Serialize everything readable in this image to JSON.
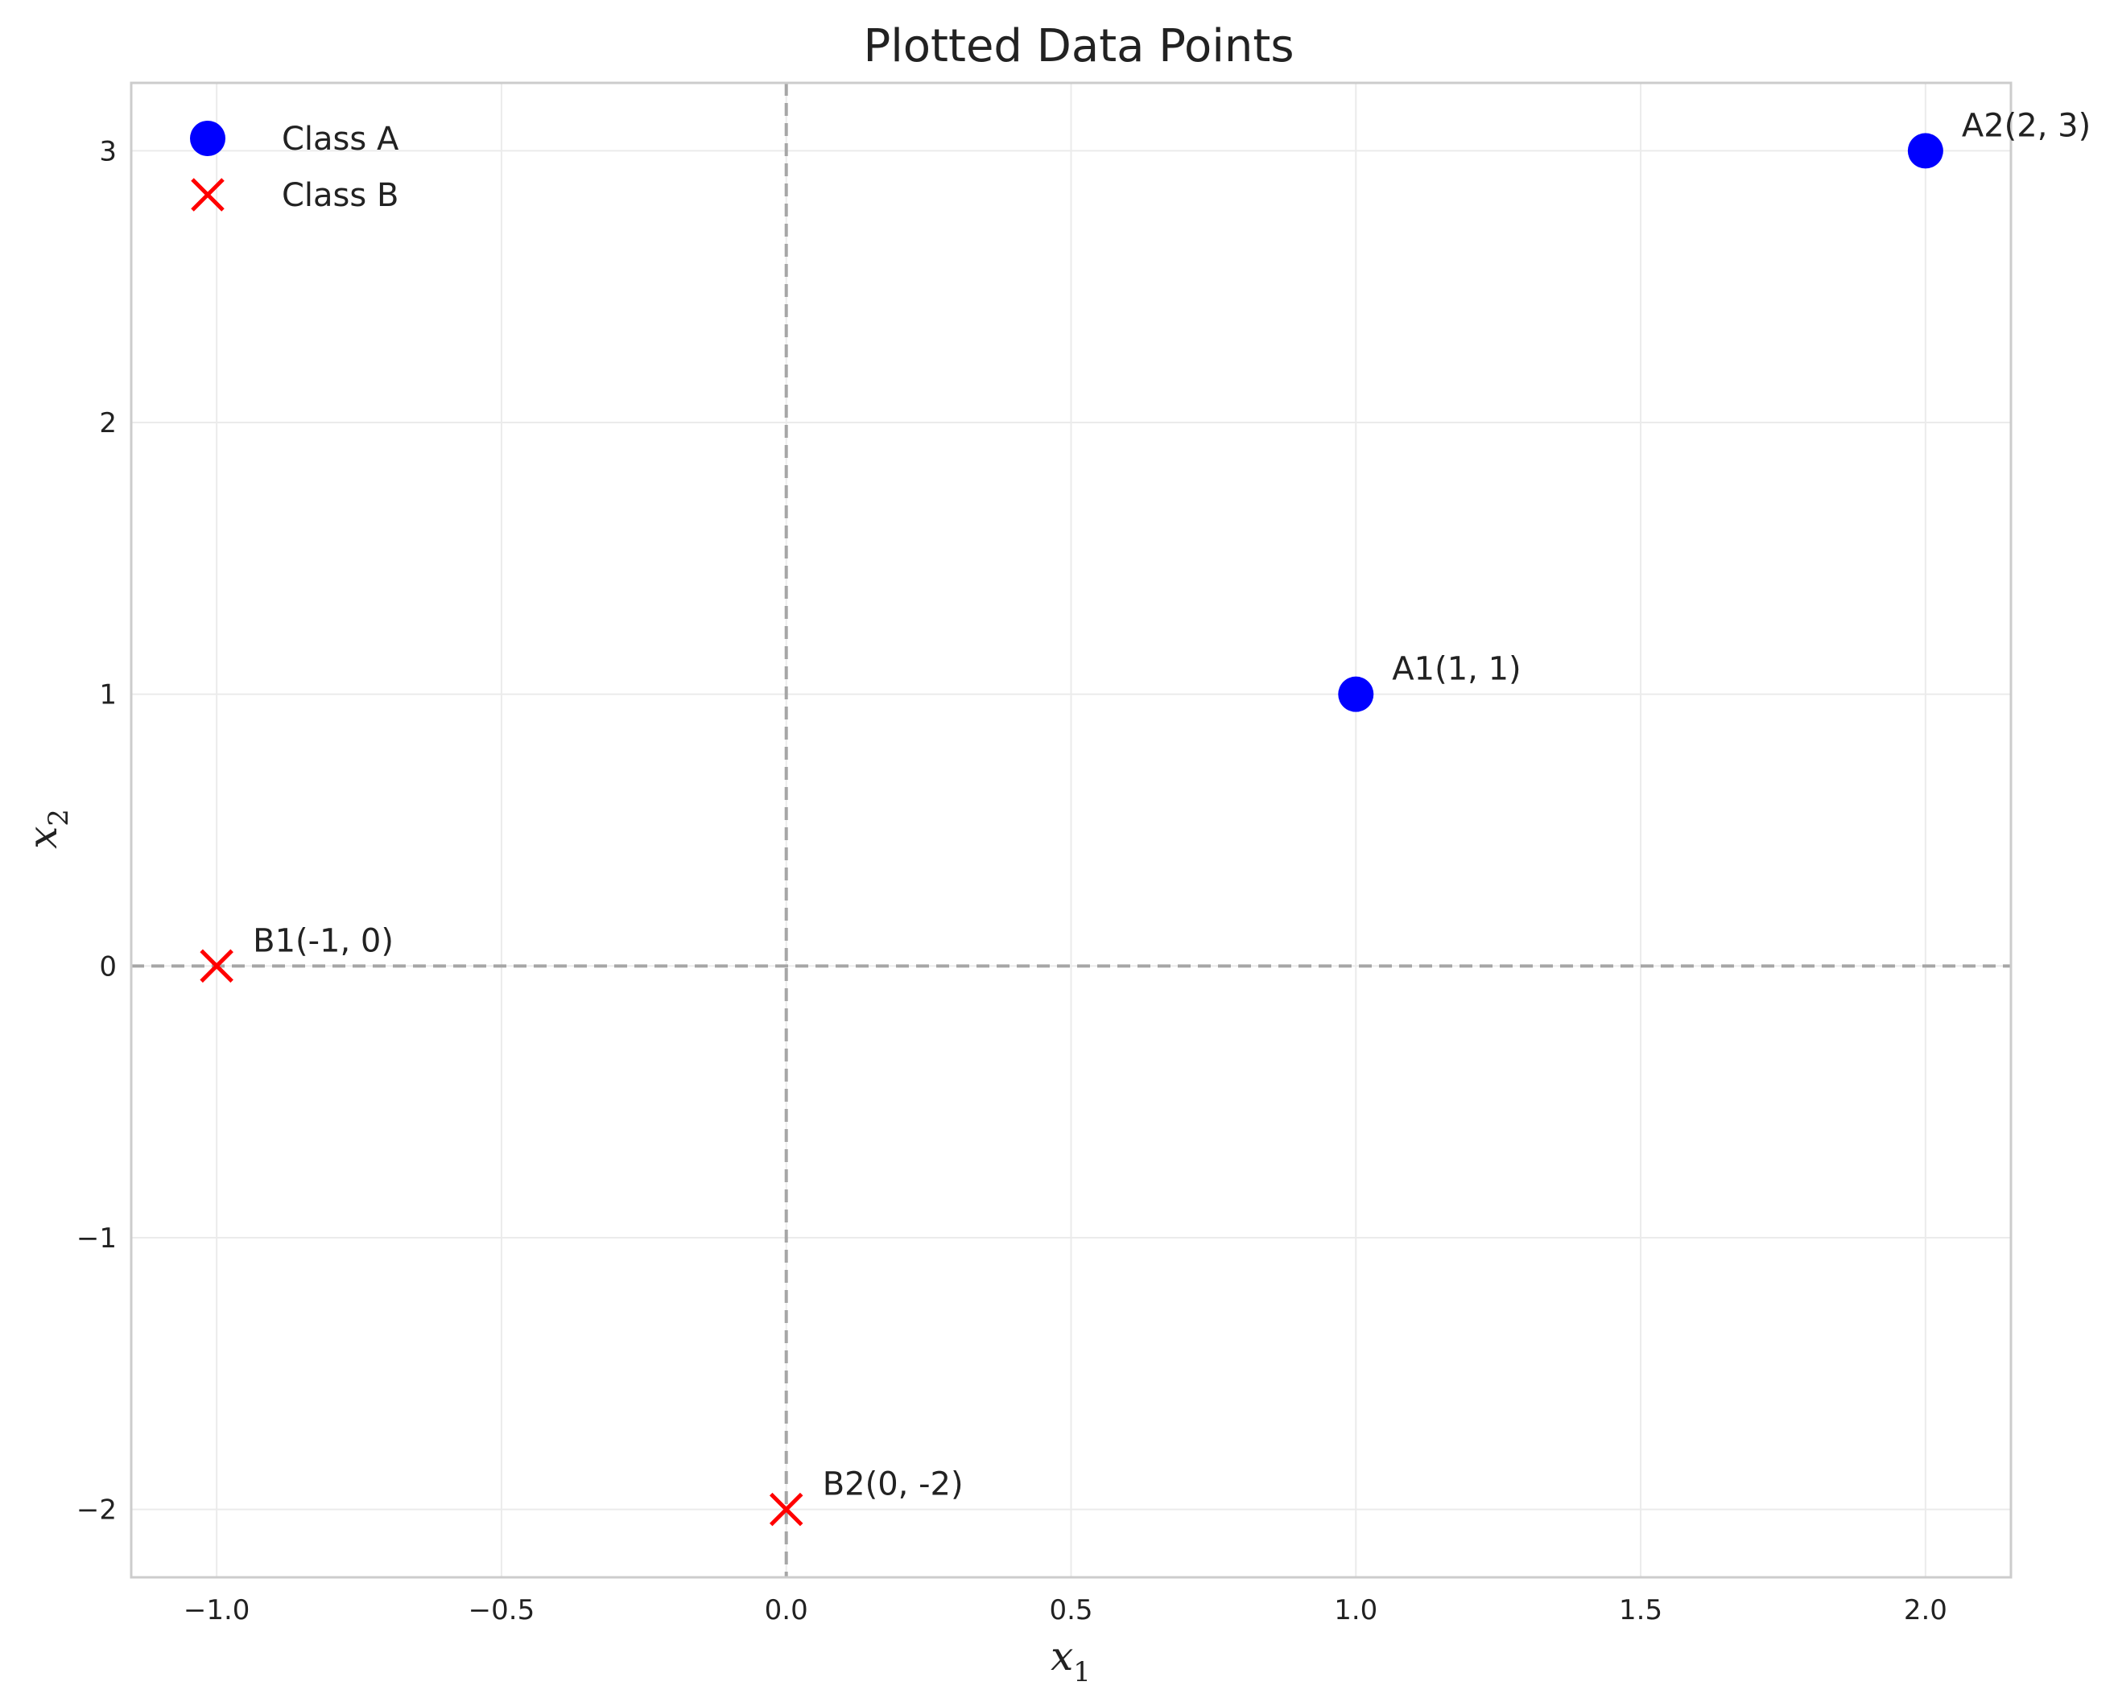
{
  "chart_data": {
    "type": "scatter",
    "title": "Plotted Data Points",
    "xlabel": "x",
    "xlabel_sub": "1",
    "ylabel": "x",
    "ylabel_sub": "2",
    "xlim": [
      -1.15,
      2.15
    ],
    "ylim": [
      -2.25,
      3.25
    ],
    "xticks": [
      -1.0,
      -0.5,
      0.0,
      0.5,
      1.0,
      1.5,
      2.0
    ],
    "xtick_labels": [
      "−1.0",
      "−0.5",
      "0.0",
      "0.5",
      "1.0",
      "1.5",
      "2.0"
    ],
    "yticks": [
      -2,
      -1,
      0,
      1,
      2,
      3
    ],
    "ytick_labels": [
      "−2",
      "−1",
      "0",
      "1",
      "2",
      "3"
    ],
    "grid": true,
    "reference_lines": {
      "x": 0,
      "y": 0,
      "style": "dashed",
      "color": "#a6a6a6"
    },
    "legend_position": "top-left",
    "series": [
      {
        "name": "Class A",
        "marker": "circle",
        "color": "#0000ff",
        "points": [
          {
            "label": "A1(1, 1)",
            "x": 1,
            "y": 1
          },
          {
            "label": "A2(2, 3)",
            "x": 2,
            "y": 3
          }
        ]
      },
      {
        "name": "Class B",
        "marker": "x",
        "color": "#ff0000",
        "points": [
          {
            "label": "B1(-1, 0)",
            "x": -1,
            "y": 0
          },
          {
            "label": "B2(0, -2)",
            "x": 0,
            "y": -2
          }
        ]
      }
    ]
  }
}
